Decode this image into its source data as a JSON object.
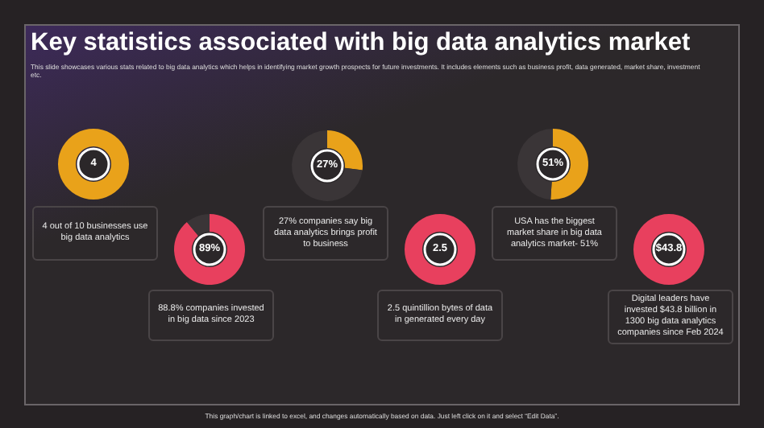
{
  "chart_data": [
    {
      "type": "other",
      "title": "Key statistics associated with big data analytics market",
      "subtitle": "This slide showcases various stats related to big data analytics which helps in identifying market growth prospects for future investments. It includes elements such as business profit, data generated, market share, investment etc.",
      "annotations": [
        "This graph/chart is linked to excel, and changes automatically based on data. Just left click on it and select “Edit Data”."
      ]
    },
    {
      "type": "donut",
      "categories": [
        null
      ],
      "values": [
        100
      ],
      "colors": [
        "#e9a21a"
      ],
      "annotations": [
        "4",
        "4 out of 10 businesses use big data analytics"
      ]
    },
    {
      "type": "donut",
      "categories": [
        null,
        null
      ],
      "values": [
        89,
        11
      ],
      "colors": [
        "#e8405e",
        "#3a3537"
      ],
      "annotations": [
        "89%",
        "88.8% companies invested in big data since 2023"
      ]
    },
    {
      "type": "donut",
      "categories": [
        null,
        null
      ],
      "values": [
        27,
        73
      ],
      "colors": [
        "#e9a21a",
        "#3a3537"
      ],
      "annotations": [
        "27%",
        "27% companies say big data analytics brings profit to business"
      ]
    },
    {
      "type": "donut",
      "categories": [
        null
      ],
      "values": [
        100
      ],
      "colors": [
        "#e8405e"
      ],
      "annotations": [
        "2.5",
        "2.5 quintillion bytes of data in generated every day"
      ]
    },
    {
      "type": "donut",
      "categories": [
        null,
        null
      ],
      "values": [
        51,
        49
      ],
      "colors": [
        "#e9a21a",
        "#3a3537"
      ],
      "annotations": [
        "51%",
        "USA has the biggest market share in big data analytics market- 51%"
      ]
    },
    {
      "type": "donut",
      "categories": [
        null
      ],
      "values": [
        100
      ],
      "colors": [
        "#e8405e"
      ],
      "annotations": [
        "$43.8",
        "Digital leaders have invested $43.8 billion in 1300 big data analytics companies since Feb 2024"
      ]
    }
  ]
}
